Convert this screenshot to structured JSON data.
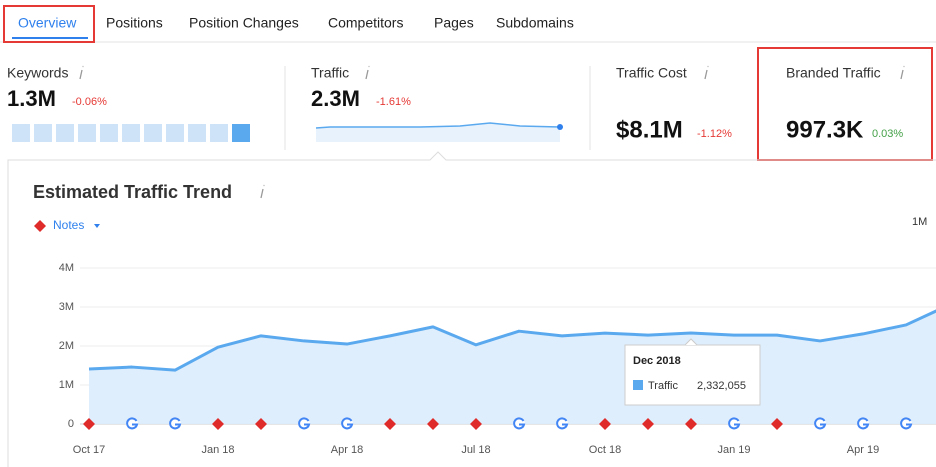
{
  "tabs": [
    "Overview",
    "Positions",
    "Position Changes",
    "Competitors",
    "Pages",
    "Subdomains"
  ],
  "metrics": [
    {
      "label": "Keywords",
      "value": "1.3M",
      "change": "-0.06%"
    },
    {
      "label": "Traffic",
      "value": "2.3M",
      "change": "-1.61%"
    },
    {
      "label": "Traffic Cost",
      "value": "$8.1M",
      "change": "-1.12%"
    },
    {
      "label": "Branded Traffic",
      "value": "997.3K",
      "change": "0.03%"
    }
  ],
  "notes_label": "Notes",
  "period": "1M",
  "chart_data": {
    "type": "area",
    "title": "Estimated Traffic Trend",
    "categories": [
      "Oct 17",
      null,
      null,
      "Jan 18",
      null,
      null,
      "Apr 18",
      null,
      null,
      "Jul 18",
      null,
      null,
      "Oct 18",
      null,
      null,
      "Jan 19",
      null,
      null,
      "Apr 19",
      null,
      null
    ],
    "series": [
      {
        "name": "Traffic",
        "color": "#5aa9ef",
        "values": [
          1410000,
          1460000,
          1380000,
          1970000,
          2260000,
          2130000,
          2050000,
          2260000,
          2490000,
          2030000,
          2380000,
          2260000,
          2330000,
          2280000,
          2332055,
          2280000,
          2280000,
          2130000,
          2310000,
          2540000,
          3050000
        ],
        "value_labels": [
          null,
          null,
          null,
          null,
          null,
          null,
          null,
          null,
          null,
          null,
          null,
          null,
          null,
          null,
          "2,332,055",
          null,
          null,
          null,
          null,
          null,
          null
        ]
      }
    ],
    "ylim": [
      0,
      4000000
    ],
    "yticks": [
      0,
      {
        "value": 1000000,
        "label": "1M"
      },
      {
        "value": 2000000,
        "label": "2M"
      },
      {
        "value": 3000000,
        "label": "3M"
      },
      {
        "value": 4000000,
        "label": "4M"
      }
    ],
    "grid": true,
    "tooltip": {
      "title": "Dec 2018"
    }
  }
}
